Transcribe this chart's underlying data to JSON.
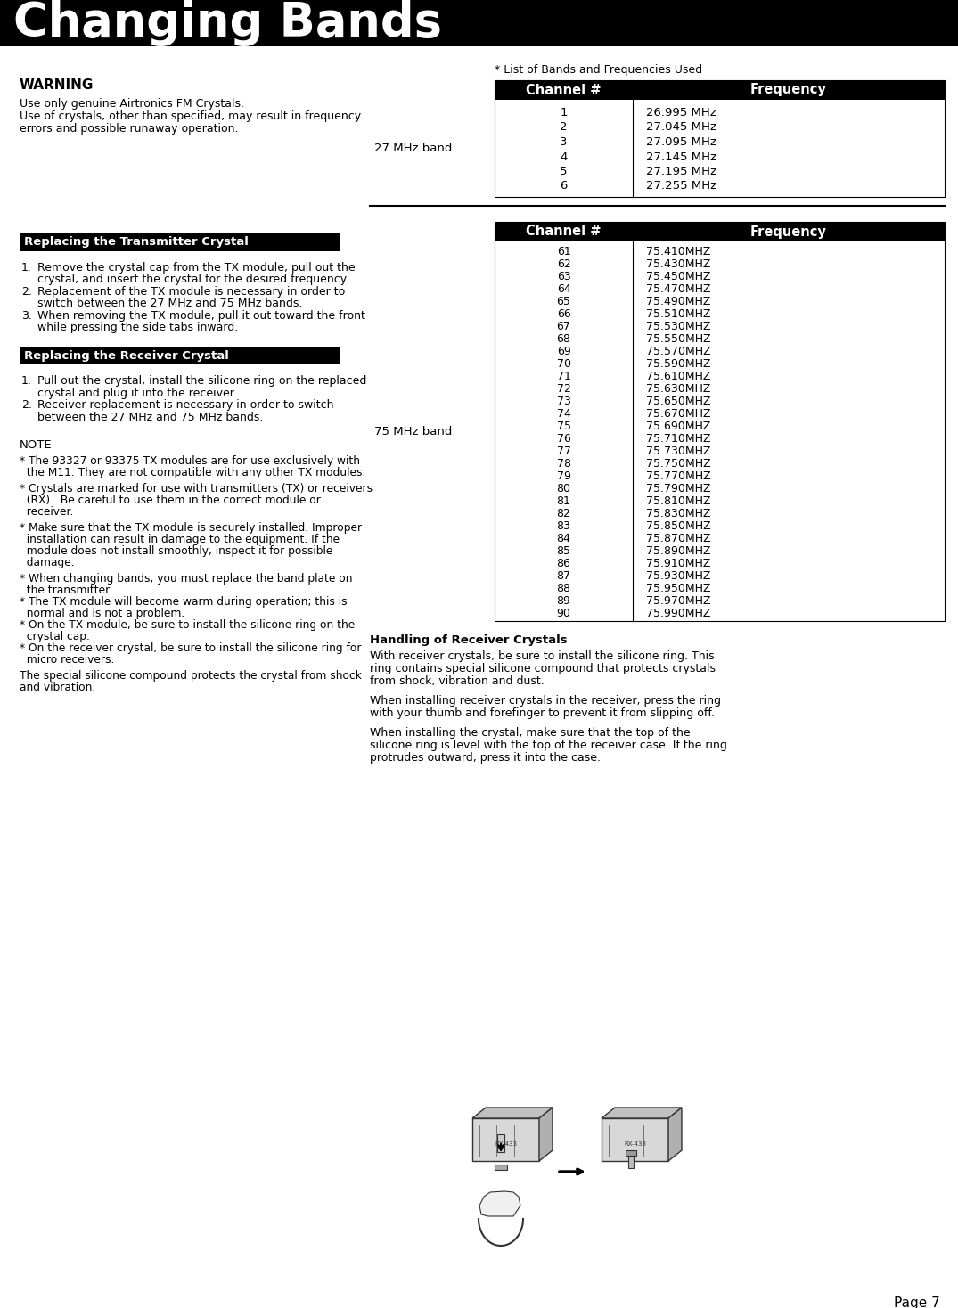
{
  "title": "Changing Bands",
  "title_bg": "#000000",
  "title_color": "#ffffff",
  "page_number": "Page 7",
  "warning_title": "WARNING",
  "warning_lines": [
    "Use only genuine Airtronics FM Crystals.",
    "Use of crystals, other than specified, may result in frequency",
    "errors and possible runaway operation."
  ],
  "section1_title": "Replacing the Transmitter Crystal",
  "section1_lines": [
    [
      "1.",
      "Remove the crystal cap from the TX module, pull out the"
    ],
    [
      "",
      "crystal, and insert the crystal for the desired frequency."
    ],
    [
      "2.",
      "Replacement of the TX module is necessary in order to"
    ],
    [
      "",
      "switch between the 27 MHz and 75 MHz bands."
    ],
    [
      "3.",
      "When removing the TX module, pull it out toward the front"
    ],
    [
      "",
      "while pressing the side tabs inward."
    ]
  ],
  "section2_title": "Replacing the Receiver Crystal",
  "section2_lines": [
    [
      "1.",
      "Pull out the crystal, install the silicone ring on the replaced"
    ],
    [
      "",
      "crystal and plug it into the receiver."
    ],
    [
      "2.",
      "Receiver replacement is necessary in order to switch"
    ],
    [
      "",
      "between the 27 MHz and 75 MHz bands."
    ]
  ],
  "note_title": "NOTE",
  "note_lines": [
    "* The 93327 or 93375 TX modules are for use exclusively with",
    "  the M11. They are not compatible with any other TX modules.",
    "",
    "* Crystals are marked for use with transmitters (TX) or receivers",
    "  (RX).  Be careful to use them in the correct module or",
    "  receiver.",
    "",
    "* Make sure that the TX module is securely installed. Improper",
    "  installation can result in damage to the equipment. If the",
    "  module does not install smoothly, inspect it for possible",
    "  damage.",
    "",
    "* When changing bands, you must replace the band plate on",
    "  the transmitter.",
    "* The TX module will become warm during operation; this is",
    "  normal and is not a problem.",
    "* On the TX module, be sure to install the silicone ring on the",
    "  crystal cap.",
    "* On the receiver crystal, be sure to install the silicone ring for",
    "  micro receivers.",
    "",
    "The special silicone compound protects the crystal from shock",
    "and vibration."
  ],
  "list_label": "* List of Bands and Frequencies Used",
  "table1_band": "27 MHz band",
  "table1_channels": [
    "1",
    "2",
    "3",
    "4",
    "5",
    "6"
  ],
  "table1_freqs": [
    "26.995 MHz",
    "27.045 MHz",
    "27.095 MHz",
    "27.145 MHz",
    "27.195 MHz",
    "27.255 MHz"
  ],
  "table2_band": "75 MHz band",
  "table2_channels": [
    "61",
    "62",
    "63",
    "64",
    "65",
    "66",
    "67",
    "68",
    "69",
    "70",
    "71",
    "72",
    "73",
    "74",
    "75",
    "76",
    "77",
    "78",
    "79",
    "80",
    "81",
    "82",
    "83",
    "84",
    "85",
    "86",
    "87",
    "88",
    "89",
    "90"
  ],
  "table2_freqs": [
    "75.410MHZ",
    "75.430MHZ",
    "75.450MHZ",
    "75.470MHZ",
    "75.490MHZ",
    "75.510MHZ",
    "75.530MHZ",
    "75.550MHZ",
    "75.570MHZ",
    "75.590MHZ",
    "75.610MHZ",
    "75.630MHZ",
    "75.650MHZ",
    "75.670MHZ",
    "75.690MHZ",
    "75.710MHZ",
    "75.730MHZ",
    "75.750MHZ",
    "75.770MHZ",
    "75.790MHZ",
    "75.810MHZ",
    "75.830MHZ",
    "75.850MHZ",
    "75.870MHZ",
    "75.890MHZ",
    "75.910MHZ",
    "75.930MHZ",
    "75.950MHZ",
    "75.970MHZ",
    "75.990MHZ"
  ],
  "handling_title": "Handling of Receiver Crystals",
  "handling_paras": [
    [
      "With receiver crystals, be sure to install the silicone ring. This",
      "ring contains special silicone compound that protects crystals",
      "from shock, vibration and dust."
    ],
    [
      "When installing receiver crystals in the receiver, press the ring",
      "with your thumb and forefinger to prevent it from slipping off."
    ],
    [
      "When installing the crystal, make sure that the top of the",
      "silicone ring is level with the top of the receiver case. If the ring",
      "protrudes outward, press it into the case."
    ]
  ],
  "header_bg": "#000000",
  "header_color": "#ffffff",
  "section_bg": "#000000",
  "section_color": "#ffffff",
  "body_color": "#000000",
  "bg_color": "#ffffff"
}
